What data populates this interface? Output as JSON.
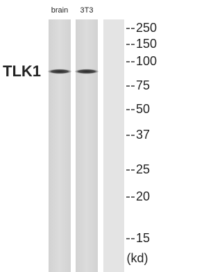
{
  "protein": "TLK1",
  "lanes": [
    "brain",
    "3T3"
  ],
  "markers": [
    "250",
    "150",
    "100",
    "75",
    "50",
    "37",
    "25",
    "20",
    "15"
  ],
  "unit": "(kd)"
}
